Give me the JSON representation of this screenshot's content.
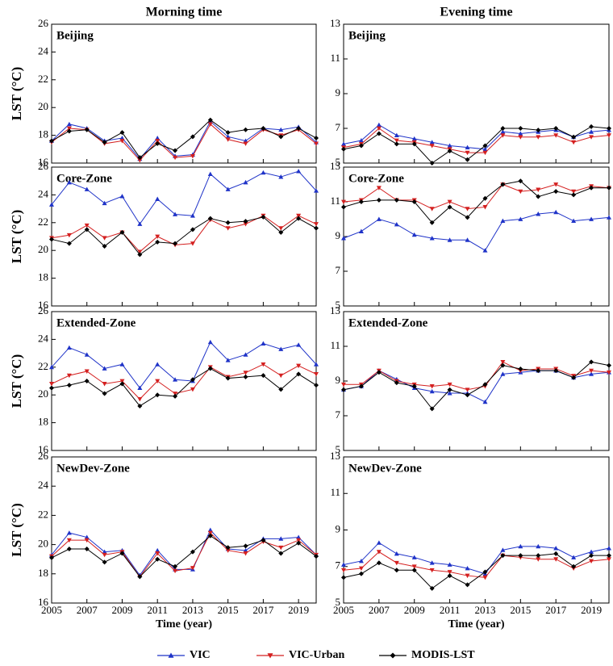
{
  "chart_data": [
    {
      "type": "line",
      "title": "Morning time",
      "panel_label": "Beijing",
      "ylabel": "LST (°C)",
      "x": [
        2005,
        2006,
        2007,
        2008,
        2009,
        2010,
        2011,
        2012,
        2013,
        2014,
        2015,
        2016,
        2017,
        2018,
        2019,
        2020
      ],
      "xlim": [
        2005,
        2020
      ],
      "xticks": [
        2005,
        2007,
        2009,
        2011,
        2013,
        2015,
        2017,
        2019
      ],
      "ylim": [
        16,
        26
      ],
      "yticks": [
        16,
        18,
        20,
        22,
        24,
        26
      ],
      "series": [
        {
          "name": "VIC",
          "color": "#1f33c8",
          "marker": "triangle-up",
          "values": [
            17.6,
            18.8,
            18.5,
            17.6,
            17.8,
            16.3,
            17.8,
            16.5,
            16.6,
            19.0,
            17.9,
            17.6,
            18.5,
            18.4,
            18.6,
            17.5
          ]
        },
        {
          "name": "VIC-Urban",
          "color": "#d42020",
          "marker": "triangle-down",
          "values": [
            17.5,
            18.5,
            18.4,
            17.4,
            17.6,
            16.2,
            17.6,
            16.4,
            16.5,
            18.8,
            17.7,
            17.4,
            18.4,
            18.0,
            18.4,
            17.4
          ]
        },
        {
          "name": "MODIS-LST",
          "color": "#000000",
          "marker": "diamond",
          "values": [
            17.6,
            18.3,
            18.4,
            17.5,
            18.2,
            16.4,
            17.4,
            16.9,
            17.9,
            19.1,
            18.2,
            18.4,
            18.5,
            17.9,
            18.5,
            17.8
          ]
        }
      ]
    },
    {
      "type": "line",
      "title": "Evening time",
      "panel_label": "Beijing",
      "x": [
        2005,
        2006,
        2007,
        2008,
        2009,
        2010,
        2011,
        2012,
        2013,
        2014,
        2015,
        2016,
        2017,
        2018,
        2019,
        2020
      ],
      "xlim": [
        2005,
        2020
      ],
      "xticks": [
        2005,
        2007,
        2009,
        2011,
        2013,
        2015,
        2017,
        2019
      ],
      "ylim": [
        5,
        13
      ],
      "yticks": [
        5,
        7,
        9,
        11,
        13
      ],
      "series": [
        {
          "name": "VIC",
          "color": "#1f33c8",
          "marker": "triangle-up",
          "values": [
            6.1,
            6.3,
            7.2,
            6.6,
            6.4,
            6.2,
            6.0,
            5.9,
            5.8,
            6.8,
            6.7,
            6.8,
            6.9,
            6.5,
            6.8,
            6.9
          ]
        },
        {
          "name": "VIC-Urban",
          "color": "#d42020",
          "marker": "triangle-down",
          "values": [
            5.9,
            6.1,
            7.0,
            6.3,
            6.2,
            6.0,
            5.8,
            5.6,
            5.6,
            6.6,
            6.5,
            6.5,
            6.6,
            6.2,
            6.5,
            6.6
          ]
        },
        {
          "name": "MODIS-LST",
          "color": "#000000",
          "marker": "diamond",
          "values": [
            5.8,
            6.0,
            6.7,
            6.1,
            6.1,
            5.0,
            5.7,
            5.2,
            6.0,
            7.0,
            7.0,
            6.9,
            7.0,
            6.5,
            7.1,
            7.0
          ]
        }
      ]
    },
    {
      "type": "line",
      "panel_label": "Core-Zone",
      "ylabel": "LST (°C)",
      "x": [
        2005,
        2006,
        2007,
        2008,
        2009,
        2010,
        2011,
        2012,
        2013,
        2014,
        2015,
        2016,
        2017,
        2018,
        2019,
        2020
      ],
      "xlim": [
        2005,
        2020
      ],
      "xticks": [
        2005,
        2007,
        2009,
        2011,
        2013,
        2015,
        2017,
        2019
      ],
      "ylim": [
        16,
        26
      ],
      "yticks": [
        16,
        18,
        20,
        22,
        24,
        26
      ],
      "series": [
        {
          "name": "VIC",
          "color": "#1f33c8",
          "marker": "triangle-up",
          "values": [
            23.3,
            24.9,
            24.4,
            23.4,
            23.9,
            21.9,
            23.7,
            22.6,
            22.5,
            25.5,
            24.4,
            24.9,
            25.6,
            25.3,
            25.7,
            24.3
          ]
        },
        {
          "name": "VIC-Urban",
          "color": "#d42020",
          "marker": "triangle-down",
          "values": [
            20.9,
            21.1,
            21.8,
            20.9,
            21.3,
            19.9,
            21.0,
            20.4,
            20.5,
            22.2,
            21.6,
            21.9,
            22.5,
            21.6,
            22.5,
            21.9
          ]
        },
        {
          "name": "MODIS-LST",
          "color": "#000000",
          "marker": "diamond",
          "values": [
            20.8,
            20.5,
            21.5,
            20.3,
            21.3,
            19.7,
            20.6,
            20.5,
            21.5,
            22.3,
            22.0,
            22.1,
            22.4,
            21.3,
            22.3,
            21.6
          ]
        }
      ]
    },
    {
      "type": "line",
      "panel_label": "Core-Zone",
      "x": [
        2005,
        2006,
        2007,
        2008,
        2009,
        2010,
        2011,
        2012,
        2013,
        2014,
        2015,
        2016,
        2017,
        2018,
        2019,
        2020
      ],
      "xlim": [
        2005,
        2020
      ],
      "xticks": [
        2005,
        2007,
        2009,
        2011,
        2013,
        2015,
        2017,
        2019
      ],
      "ylim": [
        5,
        13
      ],
      "yticks": [
        5,
        7,
        9,
        11,
        13
      ],
      "series": [
        {
          "name": "VIC",
          "color": "#1f33c8",
          "marker": "triangle-up",
          "values": [
            8.9,
            9.3,
            10.0,
            9.7,
            9.1,
            8.9,
            8.8,
            8.8,
            8.2,
            9.9,
            10.0,
            10.3,
            10.4,
            9.9,
            10.0,
            10.1
          ]
        },
        {
          "name": "VIC-Urban",
          "color": "#d42020",
          "marker": "triangle-down",
          "values": [
            11.0,
            11.1,
            11.8,
            11.1,
            11.1,
            10.6,
            11.0,
            10.6,
            10.7,
            12.0,
            11.6,
            11.7,
            12.0,
            11.6,
            11.9,
            11.8
          ]
        },
        {
          "name": "MODIS-LST",
          "color": "#000000",
          "marker": "diamond",
          "values": [
            10.7,
            11.0,
            11.1,
            11.1,
            11.0,
            9.8,
            10.7,
            10.1,
            11.2,
            12.0,
            12.2,
            11.3,
            11.6,
            11.4,
            11.8,
            11.8
          ]
        }
      ]
    },
    {
      "type": "line",
      "panel_label": "Extended-Zone",
      "ylabel": "LST (°C)",
      "x": [
        2005,
        2006,
        2007,
        2008,
        2009,
        2010,
        2011,
        2012,
        2013,
        2014,
        2015,
        2016,
        2017,
        2018,
        2019,
        2020
      ],
      "xlim": [
        2005,
        2020
      ],
      "xticks": [
        2005,
        2007,
        2009,
        2011,
        2013,
        2015,
        2017,
        2019
      ],
      "ylim": [
        16,
        26
      ],
      "yticks": [
        16,
        18,
        20,
        22,
        24,
        26
      ],
      "series": [
        {
          "name": "VIC",
          "color": "#1f33c8",
          "marker": "triangle-up",
          "values": [
            22.0,
            23.4,
            22.9,
            21.9,
            22.2,
            20.5,
            22.2,
            21.1,
            21.0,
            23.8,
            22.5,
            22.9,
            23.7,
            23.3,
            23.6,
            22.2
          ]
        },
        {
          "name": "VIC-Urban",
          "color": "#d42020",
          "marker": "triangle-down",
          "values": [
            20.8,
            21.4,
            21.7,
            20.8,
            21.0,
            19.7,
            21.0,
            20.1,
            20.4,
            22.0,
            21.3,
            21.6,
            22.2,
            21.4,
            22.1,
            21.5
          ]
        },
        {
          "name": "MODIS-LST",
          "color": "#000000",
          "marker": "diamond",
          "values": [
            20.5,
            20.7,
            21.0,
            20.1,
            20.8,
            19.2,
            20.0,
            19.9,
            21.1,
            21.9,
            21.2,
            21.3,
            21.4,
            20.4,
            21.5,
            20.7
          ]
        }
      ]
    },
    {
      "type": "line",
      "panel_label": "Extended-Zone",
      "x": [
        2005,
        2006,
        2007,
        2008,
        2009,
        2010,
        2011,
        2012,
        2013,
        2014,
        2015,
        2016,
        2017,
        2018,
        2019,
        2020
      ],
      "xlim": [
        2005,
        2020
      ],
      "xticks": [
        2005,
        2007,
        2009,
        2011,
        2013,
        2015,
        2017,
        2019
      ],
      "ylim": [
        5,
        13
      ],
      "yticks": [
        5,
        7,
        9,
        11,
        13
      ],
      "series": [
        {
          "name": "VIC",
          "color": "#1f33c8",
          "marker": "triangle-up",
          "values": [
            8.5,
            8.7,
            9.6,
            9.1,
            8.6,
            8.4,
            8.3,
            8.3,
            7.8,
            9.4,
            9.5,
            9.6,
            9.6,
            9.2,
            9.4,
            9.5
          ]
        },
        {
          "name": "VIC-Urban",
          "color": "#d42020",
          "marker": "triangle-down",
          "values": [
            8.8,
            8.8,
            9.6,
            9.0,
            8.8,
            8.7,
            8.8,
            8.5,
            8.7,
            10.1,
            9.6,
            9.7,
            9.7,
            9.3,
            9.6,
            9.5
          ]
        },
        {
          "name": "MODIS-LST",
          "color": "#000000",
          "marker": "diamond",
          "values": [
            8.5,
            8.7,
            9.5,
            8.9,
            8.7,
            7.4,
            8.5,
            8.2,
            8.8,
            9.9,
            9.7,
            9.6,
            9.6,
            9.2,
            10.1,
            9.9
          ]
        }
      ]
    },
    {
      "type": "line",
      "panel_label": "NewDev-Zone",
      "ylabel": "LST (°C)",
      "xlabel": "Time (year)",
      "x": [
        2005,
        2006,
        2007,
        2008,
        2009,
        2010,
        2011,
        2012,
        2013,
        2014,
        2015,
        2016,
        2017,
        2018,
        2019,
        2020
      ],
      "xlim": [
        2005,
        2020
      ],
      "xticks": [
        2005,
        2007,
        2009,
        2011,
        2013,
        2015,
        2017,
        2019
      ],
      "ylim": [
        16,
        26
      ],
      "yticks": [
        16,
        18,
        20,
        22,
        24,
        26
      ],
      "series": [
        {
          "name": "VIC",
          "color": "#1f33c8",
          "marker": "triangle-up",
          "values": [
            19.3,
            20.8,
            20.5,
            19.5,
            19.6,
            17.9,
            19.6,
            18.3,
            18.3,
            21.0,
            19.7,
            19.6,
            20.4,
            20.4,
            20.5,
            19.3
          ]
        },
        {
          "name": "VIC-Urban",
          "color": "#d42020",
          "marker": "triangle-down",
          "values": [
            19.2,
            20.3,
            20.3,
            19.3,
            19.5,
            17.8,
            19.4,
            18.2,
            18.4,
            20.8,
            19.6,
            19.4,
            20.2,
            19.8,
            20.3,
            19.3
          ]
        },
        {
          "name": "MODIS-LST",
          "color": "#000000",
          "marker": "diamond",
          "values": [
            19.1,
            19.7,
            19.7,
            18.8,
            19.4,
            17.8,
            19.0,
            18.5,
            19.5,
            20.6,
            19.8,
            19.9,
            20.3,
            19.4,
            20.1,
            19.2
          ]
        }
      ]
    },
    {
      "type": "line",
      "panel_label": "NewDev-Zone",
      "xlabel": "Time (year)",
      "x": [
        2005,
        2006,
        2007,
        2008,
        2009,
        2010,
        2011,
        2012,
        2013,
        2014,
        2015,
        2016,
        2017,
        2018,
        2019,
        2020
      ],
      "xlim": [
        2005,
        2020
      ],
      "xticks": [
        2005,
        2007,
        2009,
        2011,
        2013,
        2015,
        2017,
        2019
      ],
      "ylim": [
        5,
        13
      ],
      "yticks": [
        5,
        7,
        9,
        11,
        13
      ],
      "series": [
        {
          "name": "VIC",
          "color": "#1f33c8",
          "marker": "triangle-up",
          "values": [
            7.1,
            7.3,
            8.3,
            7.7,
            7.5,
            7.2,
            7.1,
            6.9,
            6.6,
            7.9,
            8.1,
            8.1,
            8.0,
            7.5,
            7.8,
            8.0
          ]
        },
        {
          "name": "VIC-Urban",
          "color": "#d42020",
          "marker": "triangle-down",
          "values": [
            6.8,
            6.9,
            7.8,
            7.2,
            7.0,
            6.8,
            6.7,
            6.5,
            6.4,
            7.6,
            7.5,
            7.4,
            7.4,
            6.9,
            7.3,
            7.4
          ]
        },
        {
          "name": "MODIS-LST",
          "color": "#000000",
          "marker": "diamond",
          "values": [
            6.4,
            6.6,
            7.2,
            6.8,
            6.8,
            5.8,
            6.5,
            6.0,
            6.7,
            7.6,
            7.6,
            7.6,
            7.7,
            7.0,
            7.6,
            7.6
          ]
        }
      ]
    }
  ]
}
